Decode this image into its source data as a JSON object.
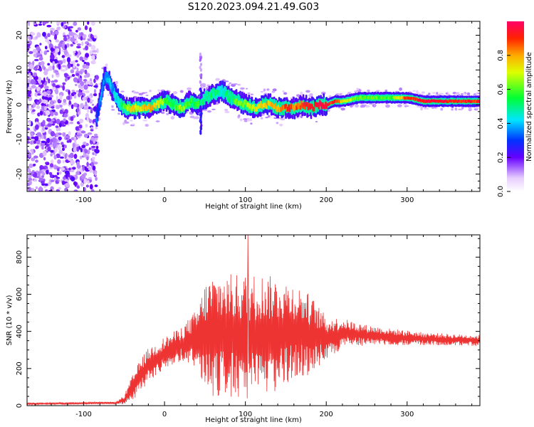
{
  "title": "S120.2023.094.21.49.G03",
  "chart_data": [
    {
      "type": "heatmap",
      "xlabel": "Height of straight line (km)",
      "ylabel": "Frequency (Hz)",
      "xlim": [
        -170,
        390
      ],
      "ylim": [
        -25,
        24
      ],
      "x_ticks": [
        -100,
        0,
        100,
        200,
        300
      ],
      "y_ticks": [
        -20,
        -10,
        0,
        10,
        20
      ],
      "colorbar": {
        "label": "Normalized spectral amplitude",
        "ticks": [
          0.0,
          0.2,
          0.4,
          0.6,
          0.8
        ],
        "range": [
          0,
          1
        ]
      },
      "ridge": {
        "x": [
          -85,
          -80,
          -75,
          -70,
          -65,
          -60,
          -55,
          -50,
          -40,
          -30,
          -20,
          -10,
          0,
          10,
          20,
          30,
          40,
          45,
          50,
          60,
          70,
          80,
          90,
          100,
          110,
          120,
          130,
          140,
          150,
          160,
          170,
          180,
          190,
          200,
          210,
          220,
          240,
          260,
          280,
          300,
          320,
          340,
          360,
          390
        ],
        "frequency": [
          -4,
          2,
          8,
          7,
          4,
          2,
          0,
          -1,
          -1,
          -1,
          -1,
          0,
          1,
          0,
          -1,
          1,
          0,
          1,
          2,
          3,
          4,
          2,
          1,
          0,
          -1,
          0,
          0,
          -1,
          -1,
          -1,
          0,
          -1,
          0,
          0,
          1,
          1,
          2,
          2,
          2,
          2,
          1,
          1,
          1,
          1
        ],
        "amplitude": [
          0.3,
          0.35,
          0.35,
          0.4,
          0.4,
          0.45,
          0.5,
          0.6,
          0.75,
          0.7,
          0.8,
          0.7,
          0.6,
          0.55,
          0.65,
          0.6,
          0.55,
          0.5,
          0.5,
          0.5,
          0.45,
          0.5,
          0.6,
          0.65,
          0.7,
          0.75,
          0.8,
          0.8,
          0.9,
          0.85,
          0.9,
          0.95,
          0.95,
          0.95,
          0.9,
          0.7,
          0.6,
          0.6,
          0.6,
          0.9,
          0.95,
          0.95,
          0.9,
          0.9
        ]
      }
    },
    {
      "type": "line",
      "xlabel": "Height of straight line (km)",
      "ylabel": "SNR (10 * v/v)",
      "xlim": [
        -170,
        390
      ],
      "ylim": [
        0,
        920
      ],
      "x_ticks": [
        -100,
        0,
        100,
        200,
        300
      ],
      "y_ticks": [
        0,
        200,
        400,
        600,
        800
      ],
      "color": "#ee3333",
      "envelope": {
        "x": [
          -170,
          -120,
          -60,
          -50,
          -40,
          -30,
          -20,
          0,
          20,
          40,
          50,
          60,
          80,
          100,
          120,
          140,
          160,
          180,
          200,
          220,
          250,
          280,
          320,
          360,
          390
        ],
        "center": [
          10,
          12,
          15,
          30,
          90,
          160,
          220,
          280,
          330,
          360,
          370,
          380,
          380,
          360,
          380,
          380,
          400,
          380,
          360,
          390,
          380,
          370,
          360,
          355,
          350
        ],
        "spread": [
          6,
          6,
          6,
          25,
          70,
          90,
          90,
          90,
          90,
          160,
          290,
          330,
          330,
          350,
          330,
          310,
          260,
          220,
          120,
          80,
          55,
          45,
          35,
          30,
          30
        ]
      },
      "peak": {
        "x": 103,
        "y": 920
      }
    }
  ]
}
